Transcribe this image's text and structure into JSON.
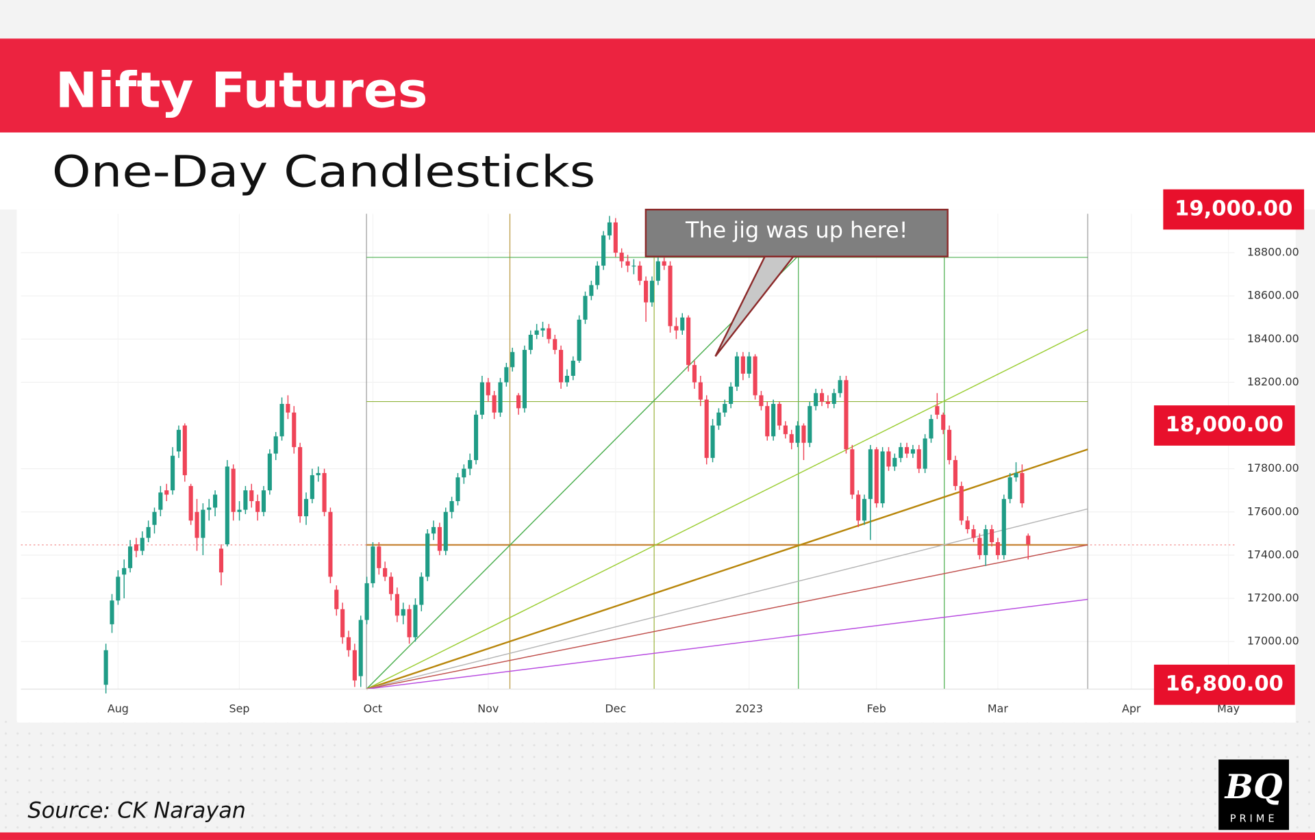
{
  "chart_data": {
    "type": "candlestick",
    "title": "Nifty Futures",
    "subtitle": "One-Day Candlesticks",
    "source": "Source: CK Narayan",
    "annotation": "The jig was up here!",
    "logo": {
      "top": "BQ",
      "bottom": "PRIME"
    },
    "up_color": "#1f9c86",
    "down_color": "#ef4458",
    "grid": true,
    "xlim": [
      -14,
      186
    ],
    "xticks": [
      {
        "value": 2,
        "label": "Aug"
      },
      {
        "value": 22,
        "label": "Sep"
      },
      {
        "value": 44,
        "label": "Oct"
      },
      {
        "value": 63,
        "label": "Nov"
      },
      {
        "value": 84,
        "label": "Dec"
      },
      {
        "value": 106,
        "label": "2023"
      },
      {
        "value": 127,
        "label": "Feb"
      },
      {
        "value": 147,
        "label": "Mar"
      },
      {
        "value": 169,
        "label": "Apr"
      },
      {
        "value": 185,
        "label": "May"
      }
    ],
    "ylim": [
      16780,
      18980
    ],
    "yticks": [
      {
        "value": 17000,
        "label": "17000.00"
      },
      {
        "value": 17200,
        "label": "17200.00"
      },
      {
        "value": 17400,
        "label": "17400.00"
      },
      {
        "value": 17600,
        "label": "17600.00"
      },
      {
        "value": 17800,
        "label": "17800.00"
      },
      {
        "value": 18200,
        "label": "18200.00"
      },
      {
        "value": 18400,
        "label": "18400.00"
      },
      {
        "value": 18600,
        "label": "18600.00"
      },
      {
        "value": 18800,
        "label": "18800.00"
      }
    ],
    "price_labels": [
      {
        "value": 19000,
        "label": "19,000.00"
      },
      {
        "value": 18000,
        "label": "18,000.00"
      },
      {
        "value": 16800,
        "label": "16,800.00"
      }
    ],
    "ohlc": [
      [
        16800,
        16990,
        16760,
        16960
      ],
      [
        17080,
        17220,
        17040,
        17190
      ],
      [
        17190,
        17330,
        17170,
        17300
      ],
      [
        17310,
        17380,
        17200,
        17340
      ],
      [
        17340,
        17470,
        17320,
        17440
      ],
      [
        17450,
        17480,
        17390,
        17420
      ],
      [
        17420,
        17510,
        17400,
        17480
      ],
      [
        17480,
        17560,
        17460,
        17530
      ],
      [
        17540,
        17620,
        17500,
        17600
      ],
      [
        17610,
        17720,
        17580,
        17690
      ],
      [
        17700,
        17730,
        17650,
        17680
      ],
      [
        17700,
        17900,
        17680,
        17860
      ],
      [
        17880,
        18000,
        17850,
        17980
      ],
      [
        18000,
        18010,
        17740,
        17770
      ],
      [
        17720,
        17730,
        17540,
        17560
      ],
      [
        17600,
        17660,
        17420,
        17480
      ],
      [
        17480,
        17640,
        17400,
        17610
      ],
      [
        17610,
        17660,
        17560,
        17620
      ],
      [
        17620,
        17700,
        17580,
        17680
      ],
      [
        17430,
        17450,
        17260,
        17320
      ],
      [
        17450,
        17840,
        17440,
        17810
      ],
      [
        17800,
        17820,
        17560,
        17600
      ],
      [
        17600,
        17650,
        17560,
        17610
      ],
      [
        17610,
        17720,
        17590,
        17700
      ],
      [
        17700,
        17730,
        17620,
        17650
      ],
      [
        17650,
        17680,
        17560,
        17600
      ],
      [
        17600,
        17720,
        17580,
        17700
      ],
      [
        17700,
        17890,
        17680,
        17870
      ],
      [
        17870,
        17970,
        17840,
        17950
      ],
      [
        17950,
        18130,
        17930,
        18100
      ],
      [
        18100,
        18140,
        18030,
        18060
      ],
      [
        18060,
        18090,
        17870,
        17900
      ],
      [
        17900,
        17920,
        17550,
        17580
      ],
      [
        17580,
        17690,
        17540,
        17660
      ],
      [
        17660,
        17800,
        17640,
        17770
      ],
      [
        17770,
        17810,
        17740,
        17780
      ],
      [
        17780,
        17800,
        17580,
        17600
      ],
      [
        17600,
        17620,
        17270,
        17300
      ],
      [
        17240,
        17260,
        17120,
        17150
      ],
      [
        17150,
        17180,
        16990,
        17020
      ],
      [
        17020,
        17050,
        16930,
        16960
      ],
      [
        16960,
        16990,
        16790,
        16820
      ],
      [
        16840,
        17120,
        16790,
        17100
      ],
      [
        17100,
        17300,
        17080,
        17270
      ],
      [
        17270,
        17460,
        17250,
        17440
      ],
      [
        17440,
        17460,
        17310,
        17340
      ],
      [
        17340,
        17370,
        17280,
        17300
      ],
      [
        17300,
        17320,
        17190,
        17220
      ],
      [
        17220,
        17250,
        17090,
        17120
      ],
      [
        17120,
        17180,
        17080,
        17150
      ],
      [
        17150,
        17170,
        16990,
        17020
      ],
      [
        17020,
        17200,
        17000,
        17170
      ],
      [
        17170,
        17320,
        17140,
        17300
      ],
      [
        17300,
        17520,
        17280,
        17500
      ],
      [
        17500,
        17560,
        17470,
        17530
      ],
      [
        17530,
        17550,
        17400,
        17420
      ],
      [
        17420,
        17620,
        17400,
        17600
      ],
      [
        17600,
        17670,
        17570,
        17650
      ],
      [
        17650,
        17780,
        17630,
        17760
      ],
      [
        17760,
        17820,
        17730,
        17800
      ],
      [
        17800,
        17870,
        17770,
        17840
      ],
      [
        17840,
        18070,
        17820,
        18050
      ],
      [
        18050,
        18230,
        18030,
        18200
      ],
      [
        18200,
        18220,
        18110,
        18140
      ],
      [
        18140,
        18160,
        18030,
        18060
      ],
      [
        18060,
        18220,
        18040,
        18200
      ],
      [
        18200,
        18290,
        18180,
        18270
      ],
      [
        18270,
        18360,
        18250,
        18340
      ],
      [
        18140,
        18150,
        18050,
        18080
      ],
      [
        18080,
        18370,
        18060,
        18350
      ],
      [
        18350,
        18440,
        18330,
        18420
      ],
      [
        18420,
        18470,
        18400,
        18440
      ],
      [
        18440,
        18480,
        18410,
        18450
      ],
      [
        18450,
        18470,
        18380,
        18400
      ],
      [
        18400,
        18420,
        18330,
        18350
      ],
      [
        18350,
        18370,
        18170,
        18200
      ],
      [
        18200,
        18260,
        18180,
        18230
      ],
      [
        18230,
        18320,
        18210,
        18300
      ],
      [
        18300,
        18510,
        18290,
        18490
      ],
      [
        18490,
        18620,
        18470,
        18600
      ],
      [
        18600,
        18670,
        18580,
        18650
      ],
      [
        18650,
        18760,
        18630,
        18740
      ],
      [
        18740,
        18900,
        18720,
        18880
      ],
      [
        18880,
        18970,
        18860,
        18940
      ],
      [
        18940,
        18960,
        18780,
        18800
      ],
      [
        18800,
        18820,
        18730,
        18760
      ],
      [
        18760,
        18790,
        18710,
        18740
      ],
      [
        18740,
        18770,
        18700,
        18740
      ],
      [
        18740,
        18760,
        18650,
        18670
      ],
      [
        18670,
        18690,
        18480,
        18570
      ],
      [
        18570,
        18690,
        18550,
        18670
      ],
      [
        18670,
        18780,
        18650,
        18760
      ],
      [
        18760,
        18790,
        18720,
        18740
      ],
      [
        18740,
        18760,
        18430,
        18460
      ],
      [
        18460,
        18500,
        18400,
        18440
      ],
      [
        18440,
        18520,
        18420,
        18500
      ],
      [
        18500,
        18510,
        18250,
        18280
      ],
      [
        18280,
        18300,
        18170,
        18200
      ],
      [
        18200,
        18230,
        18090,
        18120
      ],
      [
        18120,
        18140,
        17820,
        17850
      ],
      [
        17850,
        18030,
        17830,
        18000
      ],
      [
        18000,
        18080,
        17980,
        18060
      ],
      [
        18060,
        18120,
        18040,
        18100
      ],
      [
        18100,
        18200,
        18080,
        18180
      ],
      [
        18180,
        18340,
        18160,
        18320
      ],
      [
        18320,
        18340,
        18210,
        18240
      ],
      [
        18240,
        18340,
        18220,
        18320
      ],
      [
        18320,
        18330,
        18120,
        18140
      ],
      [
        18140,
        18160,
        18070,
        18090
      ],
      [
        18090,
        18110,
        17930,
        17950
      ],
      [
        17950,
        18120,
        17930,
        18100
      ],
      [
        18100,
        18110,
        17980,
        18000
      ],
      [
        18000,
        18020,
        17940,
        17960
      ],
      [
        17960,
        17980,
        17890,
        17920
      ],
      [
        17920,
        18020,
        17900,
        18000
      ],
      [
        18000,
        18010,
        17840,
        17920
      ],
      [
        17920,
        18110,
        17900,
        18090
      ],
      [
        18090,
        18170,
        18070,
        18150
      ],
      [
        18150,
        18170,
        18090,
        18110
      ],
      [
        18110,
        18140,
        18080,
        18100
      ],
      [
        18100,
        18170,
        18080,
        18150
      ],
      [
        18150,
        18230,
        18130,
        18210
      ],
      [
        18210,
        18230,
        17870,
        17890
      ],
      [
        17890,
        17910,
        17660,
        17680
      ],
      [
        17680,
        17700,
        17530,
        17560
      ],
      [
        17560,
        17680,
        17540,
        17660
      ],
      [
        17660,
        17910,
        17470,
        17890
      ],
      [
        17890,
        17900,
        17620,
        17640
      ],
      [
        17640,
        17900,
        17620,
        17880
      ],
      [
        17880,
        17900,
        17790,
        17810
      ],
      [
        17810,
        17870,
        17790,
        17850
      ],
      [
        17850,
        17920,
        17830,
        17900
      ],
      [
        17900,
        17920,
        17850,
        17870
      ],
      [
        17870,
        17910,
        17850,
        17890
      ],
      [
        17890,
        17910,
        17780,
        17800
      ],
      [
        17800,
        17960,
        17780,
        17940
      ],
      [
        17940,
        18050,
        17920,
        18030
      ],
      [
        18090,
        18150,
        18030,
        18050
      ],
      [
        18050,
        18060,
        17960,
        17980
      ],
      [
        17980,
        18000,
        17820,
        17840
      ],
      [
        17840,
        17860,
        17700,
        17720
      ],
      [
        17720,
        17740,
        17540,
        17560
      ],
      [
        17560,
        17580,
        17500,
        17520
      ],
      [
        17520,
        17540,
        17460,
        17480
      ],
      [
        17480,
        17500,
        17380,
        17400
      ],
      [
        17400,
        17540,
        17350,
        17520
      ],
      [
        17520,
        17540,
        17440,
        17460
      ],
      [
        17460,
        17480,
        17380,
        17400
      ],
      [
        17400,
        17680,
        17380,
        17660
      ],
      [
        17660,
        17780,
        17640,
        17760
      ],
      [
        17760,
        17830,
        17740,
        17780
      ],
      [
        17780,
        17820,
        17620,
        17640
      ],
      [
        17490,
        17500,
        17380,
        17450
      ]
    ]
  }
}
